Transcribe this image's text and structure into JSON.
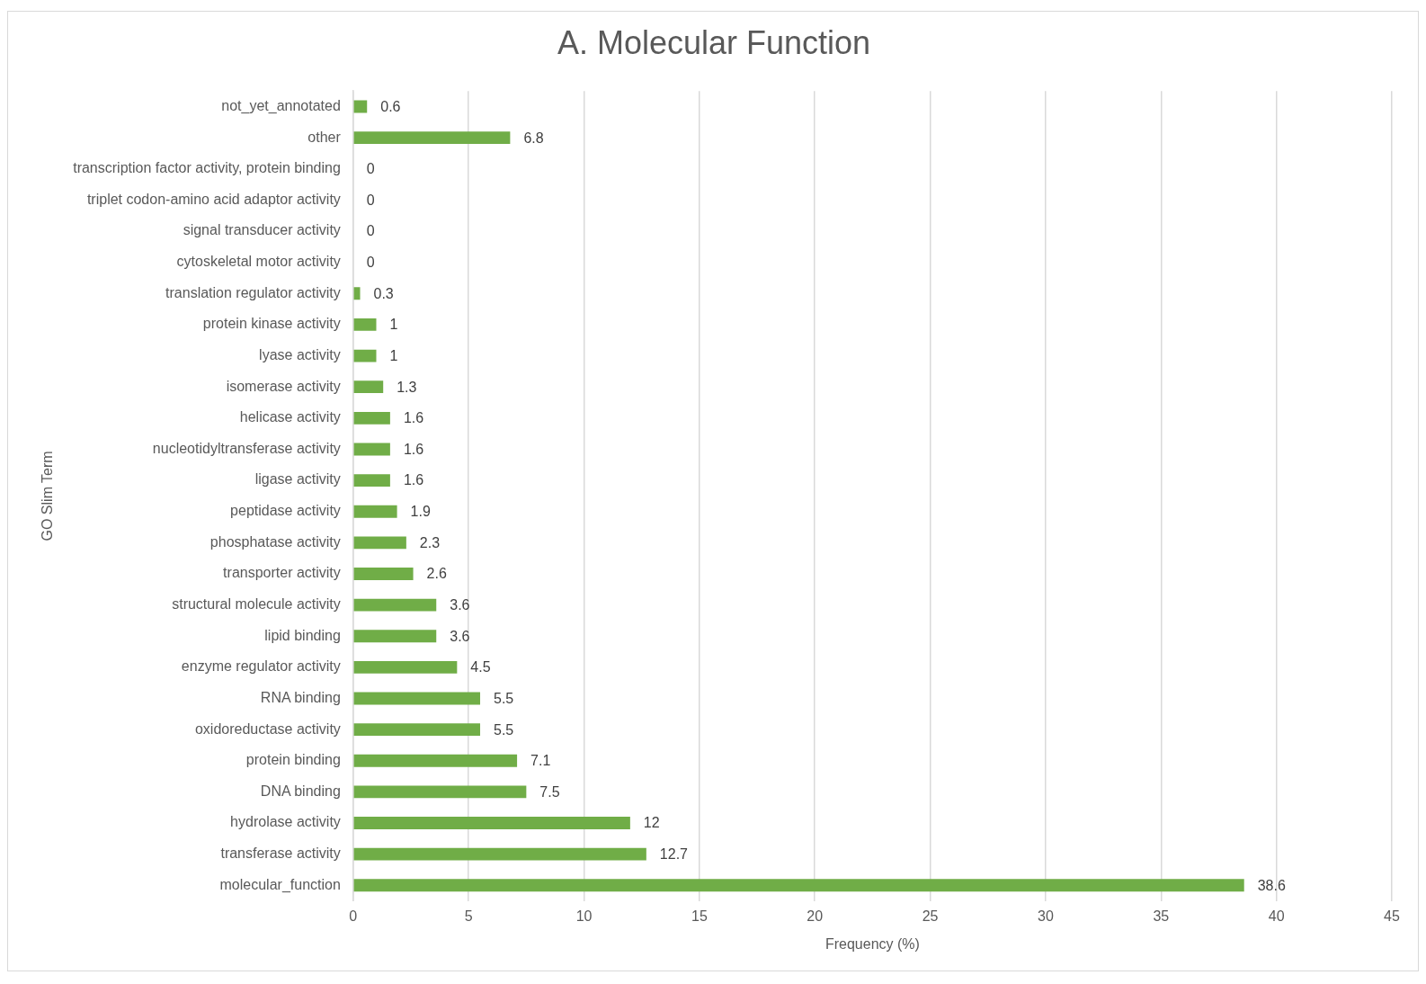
{
  "chart_data": {
    "type": "bar",
    "orientation": "horizontal",
    "title": "A. Molecular Function",
    "xlabel": "Frequency (%)",
    "ylabel": "GO Slim Term",
    "categories": [
      "not_yet_annotated",
      "other",
      "transcription factor activity, protein binding",
      "triplet codon-amino acid adaptor activity",
      "signal transducer activity",
      "cytoskeletal motor activity",
      "translation regulator activity",
      "protein kinase activity",
      "lyase activity",
      "isomerase activity",
      "helicase activity",
      "nucleotidyltransferase activity",
      "ligase activity",
      "peptidase activity",
      "phosphatase activity",
      "transporter activity",
      "structural molecule activity",
      "lipid binding",
      "enzyme regulator activity",
      "RNA binding",
      "oxidoreductase activity",
      "protein binding",
      "DNA binding",
      "hydrolase activity",
      "transferase activity",
      "molecular_function"
    ],
    "values": [
      0.6,
      6.8,
      0,
      0,
      0,
      0,
      0.3,
      1,
      1,
      1.3,
      1.6,
      1.6,
      1.6,
      1.9,
      2.3,
      2.6,
      3.6,
      3.6,
      4.5,
      5.5,
      5.5,
      7.1,
      7.5,
      12,
      12.7,
      38.6
    ],
    "color": "#70ad47",
    "xlim": [
      0,
      45
    ],
    "xticks": [
      0,
      5,
      10,
      15,
      20,
      25,
      30,
      35,
      40,
      45
    ],
    "grid": "x",
    "data_labels": true,
    "legend": false
  }
}
